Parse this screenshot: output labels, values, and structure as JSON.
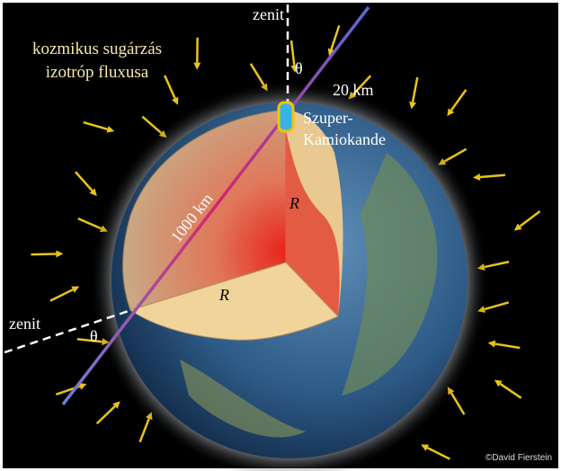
{
  "flux_label": [
    "kozmikus sugárzás",
    "izotróp fluxusa"
  ],
  "zenith_top": {
    "label": "zenit",
    "angle": "θ"
  },
  "zenith_left": {
    "label": "zenit",
    "angle": "θ"
  },
  "depth_label": "20 km",
  "detector_label": [
    "Szuper-",
    "Kamiokande"
  ],
  "path_label": "1000 km",
  "radius_labels": [
    "R",
    "R"
  ],
  "credit": "©David Fierstein"
}
